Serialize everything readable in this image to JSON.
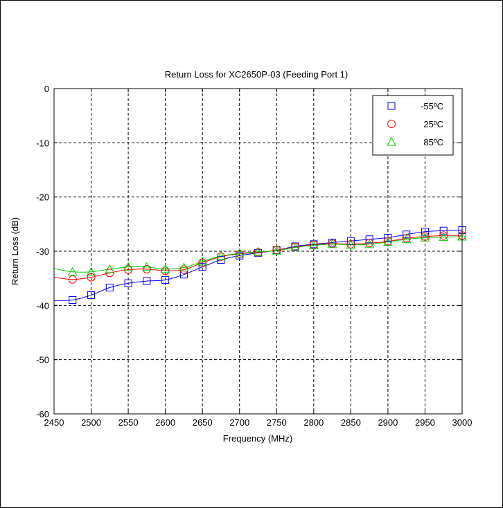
{
  "chart_data": {
    "type": "line",
    "title": "Return Loss for XC2650P-03 (Feeding Port 1)",
    "xlabel": "Frequency (MHz)",
    "ylabel": "Return Loss (dB)",
    "xlim": [
      2450,
      3000
    ],
    "ylim": [
      -60,
      0
    ],
    "x_ticks": [
      2450,
      2500,
      2550,
      2600,
      2650,
      2700,
      2750,
      2800,
      2850,
      2900,
      2950,
      3000
    ],
    "y_ticks": [
      0,
      -10,
      -20,
      -30,
      -40,
      -50,
      -60
    ],
    "x_tick_labels": [
      "2450",
      "2500",
      "2550",
      "2600",
      "2650",
      "2700",
      "2750",
      "2800",
      "2850",
      "2900",
      "2950",
      "3000"
    ],
    "y_tick_labels": [
      "0",
      "-10",
      "-20",
      "-30",
      "-40",
      "-50",
      "-60"
    ],
    "grid": true,
    "legend_position": "top-right",
    "marker_x": [
      2475,
      2500,
      2525,
      2550,
      2575,
      2600,
      2625,
      2650,
      2675,
      2700,
      2725,
      2750,
      2775,
      2800,
      2825,
      2850,
      2875,
      2900,
      2925,
      2950,
      2975,
      3000
    ],
    "series": [
      {
        "name": "-55ºC",
        "color": "#0000ff",
        "marker": "square",
        "marker_values": [
          -39.0,
          -38.1,
          -36.7,
          -35.9,
          -35.5,
          -35.3,
          -34.3,
          -32.9,
          -31.6,
          -30.8,
          -30.3,
          -29.8,
          -29.1,
          -28.7,
          -28.4,
          -28.1,
          -27.8,
          -27.5,
          -26.9,
          -26.4,
          -26.2,
          -26.1
        ],
        "curve": [
          [
            2450,
            -39.1
          ],
          [
            2475,
            -39.0
          ],
          [
            2500,
            -38.1
          ],
          [
            2525,
            -36.7
          ],
          [
            2550,
            -35.9
          ],
          [
            2575,
            -35.5
          ],
          [
            2600,
            -35.3
          ],
          [
            2625,
            -34.3
          ],
          [
            2650,
            -32.9
          ],
          [
            2675,
            -31.6
          ],
          [
            2700,
            -30.8
          ],
          [
            2725,
            -30.3
          ],
          [
            2750,
            -29.8
          ],
          [
            2775,
            -29.1
          ],
          [
            2800,
            -28.7
          ],
          [
            2825,
            -28.4
          ],
          [
            2850,
            -28.1
          ],
          [
            2875,
            -27.8
          ],
          [
            2900,
            -27.5
          ],
          [
            2925,
            -26.9
          ],
          [
            2950,
            -26.4
          ],
          [
            2975,
            -26.2
          ],
          [
            3000,
            -26.1
          ]
        ]
      },
      {
        "name": "25ºC",
        "color": "#ff0000",
        "marker": "circle",
        "marker_values": [
          -35.2,
          -34.8,
          -34.0,
          -33.4,
          -33.3,
          -33.6,
          -33.4,
          -32.1,
          -31.0,
          -30.5,
          -30.2,
          -29.8,
          -29.2,
          -28.8,
          -28.6,
          -28.7,
          -28.5,
          -28.2,
          -27.6,
          -27.3,
          -27.1,
          -27.1
        ],
        "curve": [
          [
            2450,
            -34.8
          ],
          [
            2475,
            -35.2
          ],
          [
            2500,
            -34.8
          ],
          [
            2525,
            -34.0
          ],
          [
            2550,
            -33.4
          ],
          [
            2575,
            -33.3
          ],
          [
            2600,
            -33.6
          ],
          [
            2625,
            -33.4
          ],
          [
            2650,
            -32.1
          ],
          [
            2675,
            -31.0
          ],
          [
            2700,
            -30.5
          ],
          [
            2725,
            -30.2
          ],
          [
            2750,
            -29.8
          ],
          [
            2775,
            -29.2
          ],
          [
            2800,
            -28.8
          ],
          [
            2825,
            -28.6
          ],
          [
            2850,
            -28.7
          ],
          [
            2875,
            -28.5
          ],
          [
            2900,
            -28.2
          ],
          [
            2925,
            -27.6
          ],
          [
            2950,
            -27.3
          ],
          [
            2975,
            -27.1
          ],
          [
            3000,
            -27.1
          ]
        ]
      },
      {
        "name": "85ºC",
        "color": "#00cc00",
        "marker": "triangle",
        "marker_values": [
          -33.8,
          -33.8,
          -33.3,
          -32.9,
          -32.9,
          -33.3,
          -33.0,
          -31.9,
          -30.9,
          -30.4,
          -30.1,
          -29.9,
          -29.3,
          -28.9,
          -28.7,
          -28.8,
          -28.7,
          -28.3,
          -27.8,
          -27.5,
          -27.4,
          -27.3
        ],
        "curve": [
          [
            2450,
            -33.2
          ],
          [
            2475,
            -33.8
          ],
          [
            2500,
            -33.8
          ],
          [
            2525,
            -33.3
          ],
          [
            2550,
            -32.9
          ],
          [
            2575,
            -32.9
          ],
          [
            2600,
            -33.3
          ],
          [
            2625,
            -33.0
          ],
          [
            2650,
            -31.9
          ],
          [
            2675,
            -30.9
          ],
          [
            2700,
            -30.4
          ],
          [
            2725,
            -30.1
          ],
          [
            2750,
            -29.9
          ],
          [
            2775,
            -29.3
          ],
          [
            2800,
            -28.9
          ],
          [
            2825,
            -28.7
          ],
          [
            2850,
            -28.8
          ],
          [
            2875,
            -28.7
          ],
          [
            2900,
            -28.3
          ],
          [
            2925,
            -27.8
          ],
          [
            2950,
            -27.5
          ],
          [
            2975,
            -27.4
          ],
          [
            3000,
            -27.3
          ]
        ]
      }
    ]
  }
}
